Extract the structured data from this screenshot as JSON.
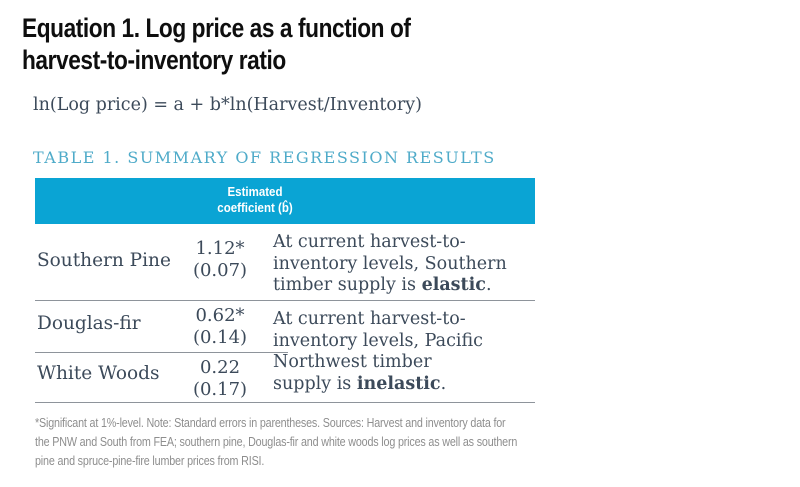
{
  "heading": {
    "line1": "Equation 1. Log price as a function of",
    "line2": "harvest-to-inventory ratio"
  },
  "equation": {
    "text": "ln(Log price) = a + b*ln(Harvest/Inventory)"
  },
  "table": {
    "caption": "TABLE 1. SUMMARY OF REGRESSION RESULTS",
    "header": {
      "line1": "Estimated",
      "line2": "coefficient (b̂)"
    },
    "rows": [
      {
        "species": "Southern Pine",
        "coefficient": "1.12*",
        "std_error": "(0.07)"
      },
      {
        "species": "Douglas-fir",
        "coefficient": "0.62*",
        "std_error": "(0.14)"
      },
      {
        "species": "White Woods",
        "coefficient": "0.22",
        "std_error": "(0.17)"
      }
    ],
    "notes": {
      "south": {
        "line1": "At current harvest-to-",
        "line2": "inventory levels, Southern",
        "line3_pre": "timber supply is ",
        "line3_bold": "elastic",
        "line3_post": "."
      },
      "pnw": {
        "line1": "At current harvest-to-",
        "line2": "inventory levels, Pacific",
        "line3": "Northwest timber",
        "line4_pre": "supply is ",
        "line4_bold": "inelastic",
        "line4_post": "."
      }
    }
  },
  "footnote": {
    "line1": "*Significant at 1%-level. Note: Standard errors in parentheses. Sources: Harvest and inventory data for",
    "line2": "the PNW and South from FEA; southern pine, Douglas-fir and white woods log prices as well as southern",
    "line3": "pine and spruce-pine-fire lumber prices from RISI."
  },
  "colors": {
    "header_band_bg": "#0aa4d4",
    "header_band_text": "#ffffff",
    "table_caption": "#4fabc9",
    "body_text": "#3c4a5a",
    "title_text": "#0e0e0e",
    "footnote_text": "#8e8e8e",
    "rule": "#8e949b"
  }
}
